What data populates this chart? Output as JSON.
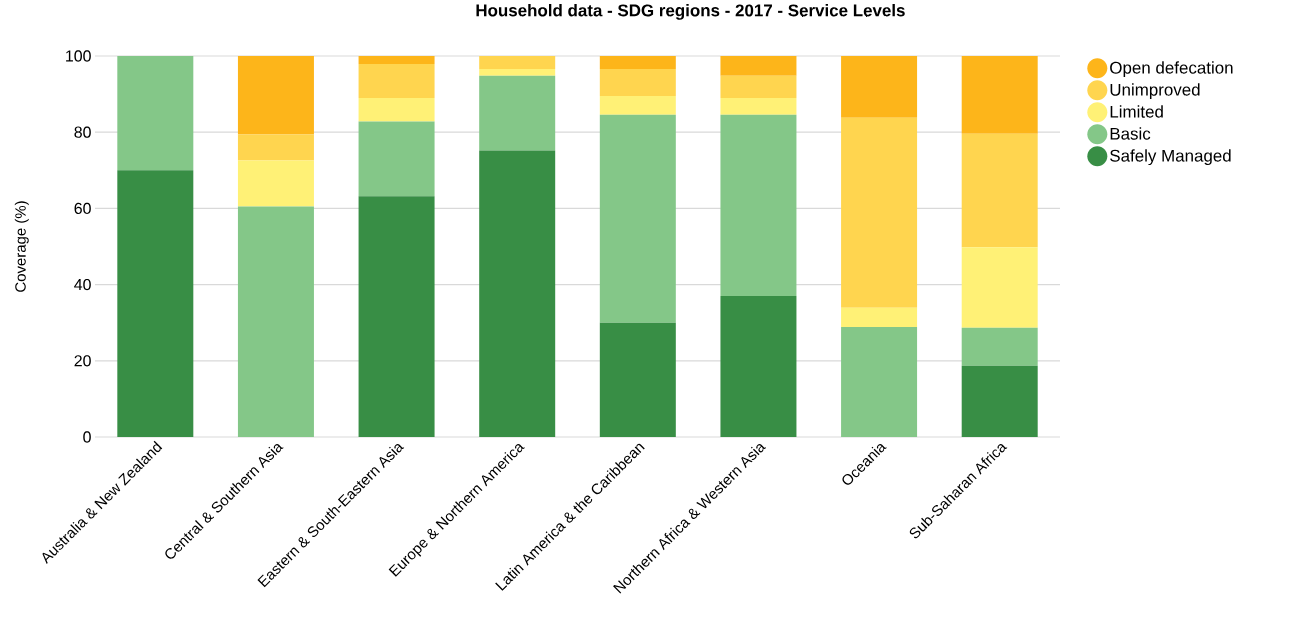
{
  "chart_data": {
    "type": "bar",
    "stacked": true,
    "title": "Household data - SDG regions - 2017 - Service Levels",
    "ylabel": "Coverage (%)",
    "categories": [
      "Australia & New Zealand",
      "Central & Southern Asia",
      "Eastern & South-Eastern Asia",
      "Europe & Northern America",
      "Latin America & the Caribbean",
      "Northern Africa & Western Asia",
      "Oceania",
      "Sub-Saharan Africa"
    ],
    "series": [
      {
        "name": "Safely Managed",
        "color": "#388e45",
        "values": [
          70,
          0,
          63.2,
          75.2,
          30,
          37,
          0,
          18.7
        ]
      },
      {
        "name": "Basic",
        "color": "#84c788",
        "values": [
          30,
          60.5,
          19.6,
          19.6,
          54.6,
          47.6,
          28.9,
          10
        ]
      },
      {
        "name": "Limited",
        "color": "#fff176",
        "values": [
          0,
          12.1,
          6.2,
          1.8,
          4.9,
          4.4,
          5,
          21.1
        ]
      },
      {
        "name": "Unimproved",
        "color": "#ffd54f",
        "values": [
          0,
          6.8,
          8.9,
          3.4,
          7.1,
          5.8,
          49.9,
          29.8
        ]
      },
      {
        "name": "Open defecation",
        "color": "#fdb51a",
        "values": [
          0,
          20.6,
          2.1,
          0,
          3.4,
          5.2,
          16.2,
          20.4
        ]
      }
    ],
    "ylim": [
      0,
      100
    ],
    "yticks": [
      0,
      20,
      40,
      60,
      80,
      100
    ],
    "grid": "y",
    "legend": "right"
  }
}
